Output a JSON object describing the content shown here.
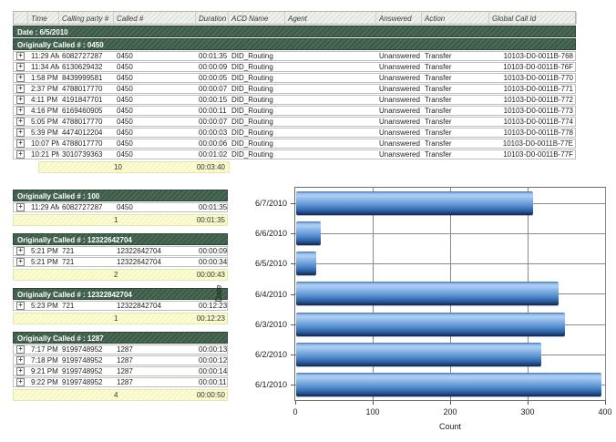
{
  "report": {
    "date_header": "Date : 6/5/2010",
    "columns": [
      "",
      "Time",
      "Calling party #",
      "Called #",
      "Duration",
      "ACD Name",
      "Agent",
      "Answered",
      "Action",
      "Global Call Id"
    ],
    "groups": [
      {
        "title": "Originally Called # : 0450",
        "full_width": true,
        "rows": [
          {
            "time": "11:29 AM",
            "calling": "6082727287",
            "called": "0450",
            "duration": "00:01:35",
            "acd": "DID_Routing",
            "agent": "",
            "answered": "Unanswered",
            "action": "Transfer",
            "global_id": "10103-D0-0011B-768"
          },
          {
            "time": "11:34 AM",
            "calling": "6130629432",
            "called": "0450",
            "duration": "00:00:09",
            "acd": "DID_Routing",
            "agent": "",
            "answered": "Unanswered",
            "action": "Transfer",
            "global_id": "10103-D0-0011B-76F"
          },
          {
            "time": "1:58 PM",
            "calling": "8439999581",
            "called": "0450",
            "duration": "00:00:05",
            "acd": "DID_Routing",
            "agent": "",
            "answered": "Unanswered",
            "action": "Transfer",
            "global_id": "10103-D0-0011B-770"
          },
          {
            "time": "2:37 PM",
            "calling": "4788017770",
            "called": "0450",
            "duration": "00:00:07",
            "acd": "DID_Routing",
            "agent": "",
            "answered": "Unanswered",
            "action": "Transfer",
            "global_id": "10103-D0-0011B-771"
          },
          {
            "time": "4:11 PM",
            "calling": "4191847701",
            "called": "0450",
            "duration": "00:00:15",
            "acd": "DID_Routing",
            "agent": "",
            "answered": "Unanswered",
            "action": "Transfer",
            "global_id": "10103-D0-0011B-772"
          },
          {
            "time": "4:16 PM",
            "calling": "6169460905",
            "called": "0450",
            "duration": "00:00:11",
            "acd": "DID_Routing",
            "agent": "",
            "answered": "Unanswered",
            "action": "Transfer",
            "global_id": "10103-D0-0011B-773"
          },
          {
            "time": "5:05 PM",
            "calling": "4788017770",
            "called": "0450",
            "duration": "00:00:07",
            "acd": "DID_Routing",
            "agent": "",
            "answered": "Unanswered",
            "action": "Transfer",
            "global_id": "10103-D0-0011B-774"
          },
          {
            "time": "5:39 PM",
            "calling": "4474012204",
            "called": "0450",
            "duration": "00:00:03",
            "acd": "DID_Routing",
            "agent": "",
            "answered": "Unanswered",
            "action": "Transfer",
            "global_id": "10103-D0-0011B-778"
          },
          {
            "time": "10:07 PM",
            "calling": "4788017770",
            "called": "0450",
            "duration": "00:00:06",
            "acd": "DID_Routing",
            "agent": "",
            "answered": "Unanswered",
            "action": "Transfer",
            "global_id": "10103-D0-0011B-77E"
          },
          {
            "time": "10:21 PM",
            "calling": "3010739363",
            "called": "0450",
            "duration": "00:01:02",
            "acd": "DID_Routing",
            "agent": "",
            "answered": "Unanswered",
            "action": "Transfer",
            "global_id": "10103-D0-0011B-77F"
          }
        ],
        "summary": {
          "count": "10",
          "duration": "00:03:40"
        }
      },
      {
        "title": "Originally Called # : 100",
        "full_width": false,
        "rows": [
          {
            "time": "11:29 AM",
            "calling": "6082727287",
            "called": "0450",
            "duration": "00:01:35"
          }
        ],
        "summary": {
          "count": "1",
          "duration": "00:01:35"
        }
      },
      {
        "title": "Originally Called # : 12322642704",
        "full_width": false,
        "rows": [
          {
            "time": "5:21 PM",
            "calling": "721",
            "called": "12322642704",
            "duration": "00:00:09"
          },
          {
            "time": "5:21 PM",
            "calling": "721",
            "called": "12322642704",
            "duration": "00:00:34"
          }
        ],
        "summary": {
          "count": "2",
          "duration": "00:00:43"
        }
      },
      {
        "title": "Originally Called # : 12322842704",
        "full_width": false,
        "rows": [
          {
            "time": "5:23 PM",
            "calling": "721",
            "called": "12322842704",
            "duration": "00:12:23"
          }
        ],
        "summary": {
          "count": "1",
          "duration": "00:12:23"
        }
      },
      {
        "title": "Originally Called # : 1287",
        "full_width": false,
        "rows": [
          {
            "time": "7:17 PM",
            "calling": "9199748952",
            "called": "1287",
            "duration": "00:00:13"
          },
          {
            "time": "7:18 PM",
            "calling": "9199748952",
            "called": "1287",
            "duration": "00:00:12"
          },
          {
            "time": "9:21 PM",
            "calling": "9199748952",
            "called": "1287",
            "duration": "00:00:14"
          },
          {
            "time": "9:22 PM",
            "calling": "9199748952",
            "called": "1287",
            "duration": "00:00:11"
          }
        ],
        "summary": {
          "count": "4",
          "duration": "00:00:50"
        }
      }
    ],
    "expand_icon": "+"
  },
  "chart_data": {
    "type": "bar",
    "orientation": "horizontal",
    "title": "",
    "categories": [
      "6/7/2010",
      "6/6/2010",
      "6/5/2010",
      "6/4/2010",
      "6/3/2010",
      "6/2/2010",
      "6/1/2010"
    ],
    "values": [
      307,
      33,
      27,
      340,
      348,
      318,
      395
    ],
    "xlabel": "Count",
    "ylabel": "Date",
    "xlim": [
      0,
      400
    ],
    "xticks": [
      0,
      100,
      200,
      300,
      400
    ],
    "grid": true,
    "legend": "none"
  },
  "colors": {
    "group_band_green": "#3c5a48",
    "summary_yellow": "#f6f6bf",
    "bar_blue": "#5b93d2",
    "bar_blue_dark": "#1c4078",
    "grid_line": "#8a8a8a"
  }
}
